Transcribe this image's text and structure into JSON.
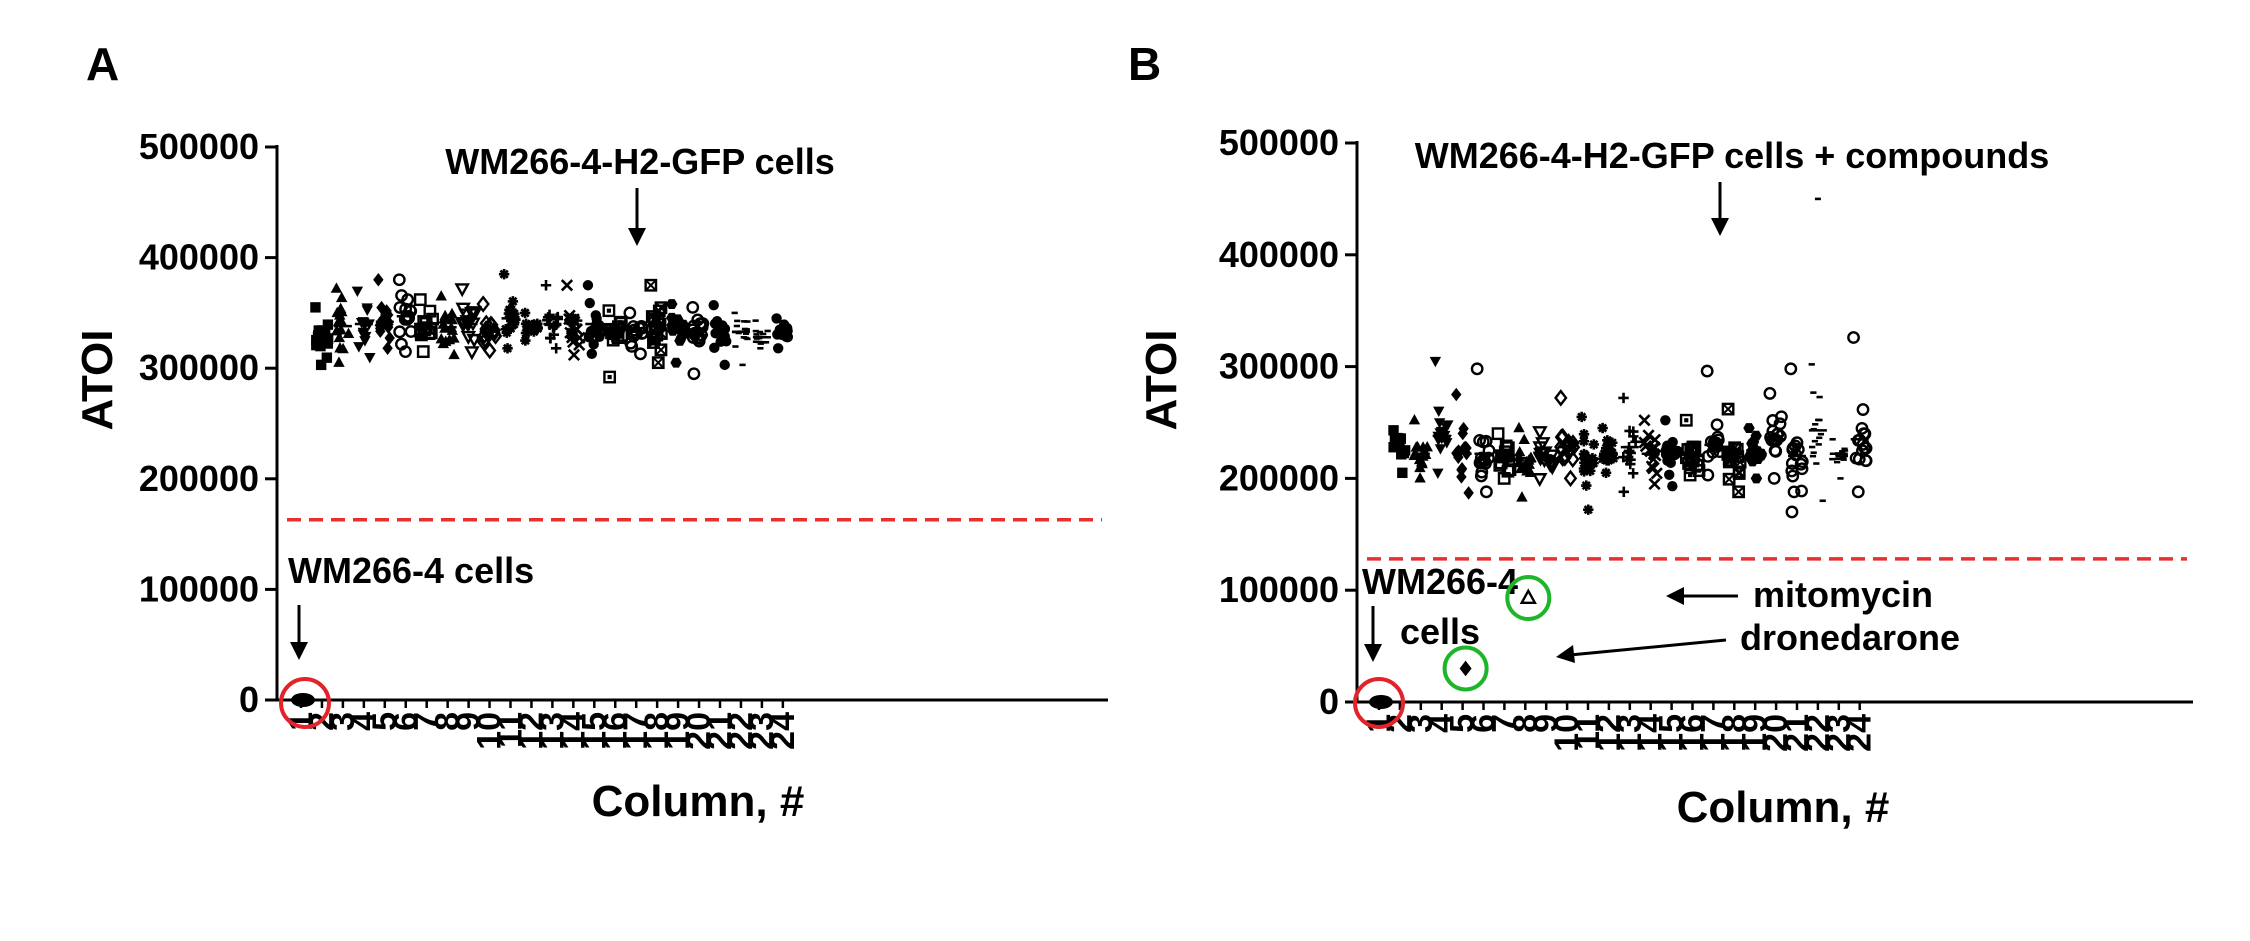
{
  "chart_data": [
    {
      "panel_label": "A",
      "type": "scatter",
      "xlabel": "Column, #",
      "ylabel": "ATOI",
      "categories": [
        "1",
        "2",
        "3",
        "4",
        "5",
        "6",
        "7",
        "8",
        "9",
        "10",
        "11",
        "12",
        "13",
        "14",
        "15",
        "16",
        "17",
        "18",
        "19",
        "20",
        "21",
        "22",
        "23",
        "24"
      ],
      "y_ticks": [
        "0",
        "100000",
        "200000",
        "300000",
        "400000",
        "500000"
      ],
      "ylim": [
        0,
        500000
      ],
      "threshold": 163000,
      "threshold_color": "#e8302f",
      "column_stats": [
        {
          "x": 1,
          "mean": 0,
          "min": 0,
          "max": 0,
          "marker": "circle"
        },
        {
          "x": 2,
          "mean": 327000,
          "min": 303000,
          "max": 355000,
          "marker": "square"
        },
        {
          "x": 3,
          "mean": 338000,
          "min": 305000,
          "max": 372000,
          "marker": "triangle"
        },
        {
          "x": 4,
          "mean": 340000,
          "min": 310000,
          "max": 370000,
          "marker": "triangle-down"
        },
        {
          "x": 5,
          "mean": 342000,
          "min": 318000,
          "max": 380000,
          "marker": "diamond"
        },
        {
          "x": 6,
          "mean": 347000,
          "min": 315000,
          "max": 380000,
          "marker": "open-circle"
        },
        {
          "x": 7,
          "mean": 337000,
          "min": 315000,
          "max": 362000,
          "marker": "open-square"
        },
        {
          "x": 8,
          "mean": 337000,
          "min": 312000,
          "max": 365000,
          "marker": "triangle"
        },
        {
          "x": 9,
          "mean": 340000,
          "min": 315000,
          "max": 372000,
          "marker": "open-triangle-down"
        },
        {
          "x": 10,
          "mean": 333000,
          "min": 316000,
          "max": 358000,
          "marker": "open-diamond"
        },
        {
          "x": 11,
          "mean": 345000,
          "min": 318000,
          "max": 385000,
          "marker": "star"
        },
        {
          "x": 12,
          "mean": 337000,
          "min": 325000,
          "max": 350000,
          "marker": "star"
        },
        {
          "x": 13,
          "mean": 340000,
          "min": 318000,
          "max": 375000,
          "marker": "plus"
        },
        {
          "x": 14,
          "mean": 343000,
          "min": 312000,
          "max": 375000,
          "marker": "cross"
        },
        {
          "x": 15,
          "mean": 340000,
          "min": 313000,
          "max": 375000,
          "marker": "circle"
        },
        {
          "x": 16,
          "mean": 335000,
          "min": 292000,
          "max": 352000,
          "marker": "boxed-square"
        },
        {
          "x": 17,
          "mean": 333000,
          "min": 313000,
          "max": 350000,
          "marker": "open-circle"
        },
        {
          "x": 18,
          "mean": 338000,
          "min": 305000,
          "max": 375000,
          "marker": "boxed-cross"
        },
        {
          "x": 19,
          "mean": 335000,
          "min": 305000,
          "max": 358000,
          "marker": "hexagon"
        },
        {
          "x": 20,
          "mean": 330000,
          "min": 295000,
          "max": 355000,
          "marker": "open-circle"
        },
        {
          "x": 21,
          "mean": 330000,
          "min": 303000,
          "max": 357000,
          "marker": "circle"
        },
        {
          "x": 22,
          "mean": 333000,
          "min": 303000,
          "max": 350000,
          "marker": "dash"
        },
        {
          "x": 23,
          "mean": 328000,
          "min": 318000,
          "max": 343000,
          "marker": "dash"
        },
        {
          "x": 24,
          "mean": 333000,
          "min": 318000,
          "max": 345000,
          "marker": "circle"
        }
      ],
      "annotations": [
        {
          "text": "WM266-4-H2-GFP cells",
          "target_x": 11
        },
        {
          "text": "WM266-4 cells",
          "target_x": 1
        }
      ]
    },
    {
      "panel_label": "B",
      "type": "scatter",
      "xlabel": "Column, #",
      "ylabel": "ATOI",
      "categories": [
        "1",
        "2",
        "3",
        "4",
        "5",
        "6",
        "7",
        "8",
        "9",
        "10",
        "11",
        "12",
        "13",
        "14",
        "15",
        "16",
        "17",
        "18",
        "19",
        "20",
        "21",
        "22",
        "23",
        "24"
      ],
      "y_ticks": [
        "0",
        "100000",
        "200000",
        "300000",
        "400000",
        "500000"
      ],
      "ylim": [
        0,
        500000
      ],
      "threshold": 128000,
      "threshold_color": "#e8302f",
      "column_stats": [
        {
          "x": 1,
          "mean": 0,
          "min": 0,
          "max": 0,
          "marker": "circle"
        },
        {
          "x": 2,
          "mean": 228000,
          "min": 205000,
          "max": 243000,
          "marker": "square"
        },
        {
          "x": 3,
          "mean": 222000,
          "min": 200000,
          "max": 252000,
          "marker": "triangle"
        },
        {
          "x": 4,
          "mean": 238000,
          "min": 205000,
          "max": 305000,
          "marker": "triangle-down"
        },
        {
          "x": 5,
          "mean": 222000,
          "min": 187000,
          "max": 275000,
          "marker": "diamond"
        },
        {
          "x": 6,
          "mean": 222000,
          "min": 188000,
          "max": 298000,
          "marker": "open-circle"
        },
        {
          "x": 7,
          "mean": 218000,
          "min": 200000,
          "max": 240000,
          "marker": "open-square"
        },
        {
          "x": 8,
          "mean": 218000,
          "min": 183000,
          "max": 245000,
          "marker": "triangle"
        },
        {
          "x": 9,
          "mean": 220000,
          "min": 200000,
          "max": 242000,
          "marker": "open-triangle-down"
        },
        {
          "x": 10,
          "mean": 228000,
          "min": 200000,
          "max": 272000,
          "marker": "open-diamond"
        },
        {
          "x": 11,
          "mean": 218000,
          "min": 172000,
          "max": 255000,
          "marker": "star"
        },
        {
          "x": 12,
          "mean": 222000,
          "min": 205000,
          "max": 245000,
          "marker": "star"
        },
        {
          "x": 13,
          "mean": 228000,
          "min": 188000,
          "max": 272000,
          "marker": "plus"
        },
        {
          "x": 14,
          "mean": 222000,
          "min": 195000,
          "max": 252000,
          "marker": "cross"
        },
        {
          "x": 15,
          "mean": 225000,
          "min": 193000,
          "max": 252000,
          "marker": "circle"
        },
        {
          "x": 16,
          "mean": 220000,
          "min": 203000,
          "max": 252000,
          "marker": "boxed-square"
        },
        {
          "x": 17,
          "mean": 230000,
          "min": 203000,
          "max": 296000,
          "marker": "open-circle"
        },
        {
          "x": 18,
          "mean": 215000,
          "min": 188000,
          "max": 262000,
          "marker": "boxed-cross"
        },
        {
          "x": 19,
          "mean": 225000,
          "min": 200000,
          "max": 245000,
          "marker": "hexagon"
        },
        {
          "x": 20,
          "mean": 235000,
          "min": 200000,
          "max": 276000,
          "marker": "open-circle"
        },
        {
          "x": 21,
          "mean": 220000,
          "min": 170000,
          "max": 298000,
          "marker": "open-circle"
        },
        {
          "x": 22,
          "mean": 243000,
          "min": 180000,
          "max": 302000,
          "marker": "dash"
        },
        {
          "x": 23,
          "mean": 222000,
          "min": 200000,
          "max": 235000,
          "marker": "dash"
        },
        {
          "x": 24,
          "mean": 235000,
          "min": 188000,
          "max": 326000,
          "marker": "open-circle"
        }
      ],
      "outliers": [
        {
          "x": 22,
          "y": 450000,
          "marker": "dash"
        }
      ],
      "highlighted_points": [
        {
          "name": "mitomycin",
          "x": 8,
          "y": 93000,
          "marker": "open-triangle",
          "ring_color": "#1fb52b"
        },
        {
          "name": "dronedarone",
          "x": 5,
          "y": 30000,
          "marker": "diamond",
          "ring_color": "#1fb52b"
        }
      ],
      "annotations": [
        {
          "text": "WM266-4-H2-GFP cells + compounds",
          "target_x": 11
        },
        {
          "text": "WM266-4",
          "target_x": 1
        },
        {
          "text": "cells",
          "target_x": 1
        },
        {
          "text": "mitomycin",
          "target_x": 8
        },
        {
          "text": "dronedarone",
          "target_x": 5
        }
      ]
    }
  ],
  "colors": {
    "control_circle": "#e3232a",
    "highlight_circle": "#1fb52b",
    "threshold": "#e8302f",
    "marks": "#000000"
  }
}
